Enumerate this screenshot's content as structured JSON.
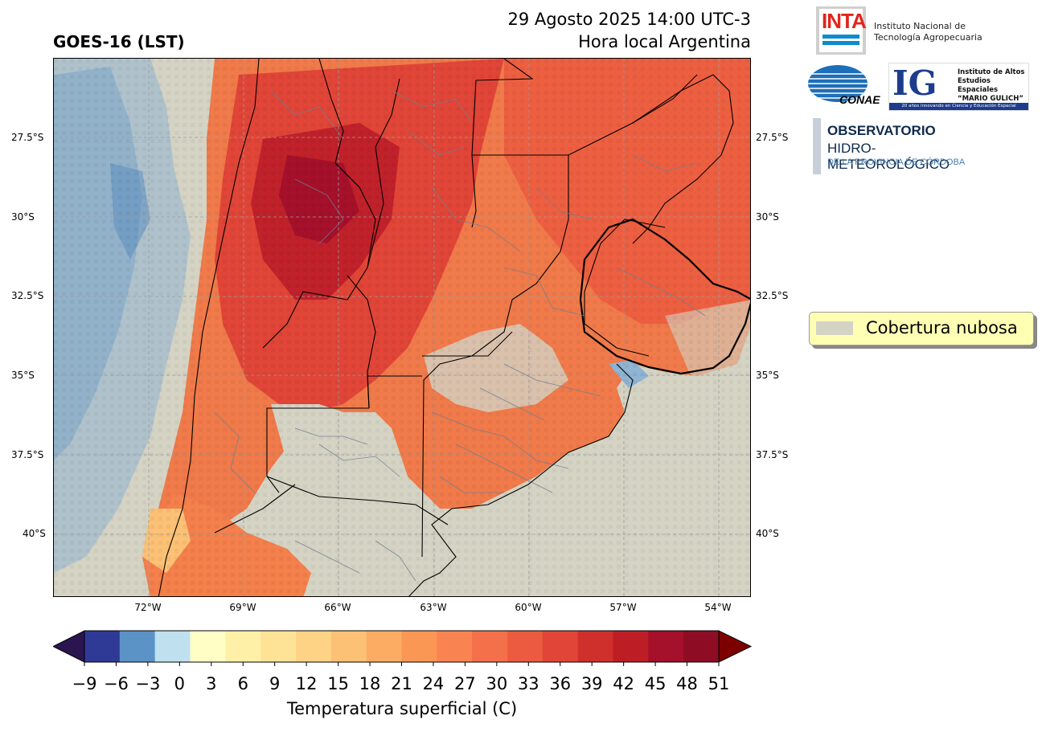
{
  "header": {
    "title": "GOES-16 (LST)",
    "date_line": "29 Agosto 2025 14:00 UTC-3",
    "local_line": "Hora local Argentina"
  },
  "map": {
    "lat_labels": [
      "27.5°S",
      "30°S",
      "32.5°S",
      "35°S",
      "37.5°S",
      "40°S"
    ],
    "lon_labels": [
      "72°W",
      "69°W",
      "66°W",
      "63°W",
      "60°W",
      "57°W",
      "54°W"
    ],
    "cloud_color": "#d4d3c4"
  },
  "legend": {
    "label": "Cobertura nubosa"
  },
  "colorbar": {
    "title": "Temperatura superficial (C)",
    "ticks": [
      "−9",
      "−6",
      "−3",
      "0",
      "3",
      "6",
      "9",
      "12",
      "15",
      "18",
      "21",
      "24",
      "27",
      "30",
      "33",
      "36",
      "39",
      "42",
      "45",
      "48",
      "51"
    ],
    "colors": [
      "#2f3a96",
      "#5c93c6",
      "#bfe0ee",
      "#ffffc5",
      "#fff0a8",
      "#fee397",
      "#fed385",
      "#fcc175",
      "#fdad63",
      "#fb9755",
      "#f98452",
      "#f4704a",
      "#ec5b40",
      "#e04537",
      "#d0302b",
      "#bd1e26",
      "#a5102a",
      "#8e0d24"
    ],
    "under_color": "#2a1550",
    "over_color": "#7d0000"
  },
  "logos": {
    "inta_word": "INTA",
    "inta_name_1": "Instituto Nacional de",
    "inta_name_2": "Tecnología Agropecuaria",
    "conae_word": "CONAE",
    "ig_letters": "IG",
    "ig_text_1": "Instituto de Altos",
    "ig_text_2": "Estudios Espaciales",
    "ig_text_3": "“MARIO GULICH”",
    "ig_strip": "20 años innovando en Ciencia y Educación Espacial",
    "obs_1": "OBSERVATORIO",
    "obs_2": "HIDRO-METEOROLÓGICO",
    "obs_3": "DE LA PROVINCIA DE CÓRDOBA"
  }
}
